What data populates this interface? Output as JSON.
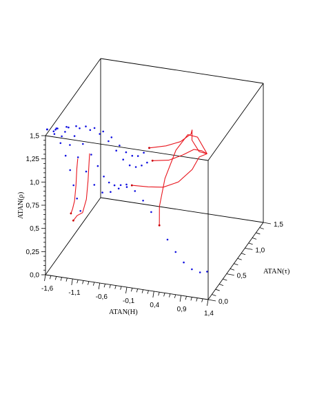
{
  "chart_data": {
    "type": "scatter",
    "subtype": "3d phase-space trajectories (dotted blue paths and solid red curves inside a wireframe box)",
    "title": "",
    "xlabel": "ATAN(H)",
    "ylabel": "ATAN(τ)",
    "zlabel": "ATAN(ρ)",
    "xlim": [
      -1.6,
      1.4
    ],
    "ylim": [
      0.0,
      1.5
    ],
    "zlim": [
      0.0,
      1.5
    ],
    "x_ticks": [
      "-1,6",
      "-1,1",
      "-0,6",
      "-0,1",
      "0,4",
      "0,9",
      "1,4"
    ],
    "y_ticks": [
      "0,0",
      "0,5",
      "1,0",
      "1,5"
    ],
    "z_ticks": [
      "0,0",
      "0,25",
      "0,5",
      "0,75",
      "1,0",
      "1,25",
      "1,5"
    ],
    "x_tick_values": [
      -1.6,
      -1.1,
      -0.6,
      -0.1,
      0.4,
      0.9,
      1.4
    ],
    "y_tick_values": [
      0.0,
      0.5,
      1.0,
      1.5
    ],
    "z_tick_values": [
      0.0,
      0.25,
      0.5,
      0.75,
      1.0,
      1.25,
      1.5
    ],
    "grid": false,
    "legend": "none",
    "colors": {
      "dots": "#1010e0",
      "curves": "#e8141c",
      "box": "#000000"
    },
    "series": [
      {
        "kind": "dotted",
        "points": [
          [
            -1.57,
            0.0,
            1.57
          ],
          [
            -1.45,
            0.0,
            1.56
          ],
          [
            -1.3,
            0.0,
            1.52
          ],
          [
            -1.15,
            0.0,
            1.44
          ],
          [
            -1.0,
            0.0,
            1.32
          ],
          [
            -0.85,
            0.0,
            1.18
          ],
          [
            -0.7,
            0.0,
            1.05
          ],
          [
            -0.55,
            0.0,
            0.98
          ],
          [
            -0.4,
            0.0,
            1.0
          ],
          [
            -0.25,
            0.0,
            1.05
          ],
          [
            -0.1,
            0.0,
            1.08
          ],
          [
            0.05,
            0.0,
            1.05
          ],
          [
            0.2,
            0.0,
            0.96
          ],
          [
            0.35,
            0.0,
            0.85
          ],
          [
            0.5,
            0.0,
            0.72
          ],
          [
            0.65,
            0.0,
            0.58
          ],
          [
            0.8,
            0.0,
            0.46
          ],
          [
            0.95,
            0.0,
            0.36
          ],
          [
            1.1,
            0.0,
            0.3
          ],
          [
            1.25,
            0.0,
            0.28
          ],
          [
            1.38,
            0.0,
            0.3
          ]
        ]
      },
      {
        "kind": "dotted",
        "points": [
          [
            -1.57,
            0.0,
            1.57
          ],
          [
            -1.45,
            0.05,
            1.55
          ],
          [
            -1.32,
            0.12,
            1.5
          ],
          [
            -1.2,
            0.2,
            1.42
          ],
          [
            -1.1,
            0.28,
            1.3
          ],
          [
            -1.0,
            0.36,
            1.15
          ],
          [
            -0.92,
            0.42,
            1.0
          ],
          [
            -0.85,
            0.48,
            0.86
          ],
          [
            -0.78,
            0.52,
            0.78
          ],
          [
            -0.7,
            0.55,
            0.74
          ],
          [
            -0.6,
            0.57,
            0.74
          ],
          [
            -0.5,
            0.58,
            0.75
          ],
          [
            -0.4,
            0.58,
            0.75
          ]
        ]
      },
      {
        "kind": "dotted",
        "points": [
          [
            -1.57,
            0.0,
            1.57
          ],
          [
            -1.42,
            0.06,
            1.56
          ],
          [
            -1.27,
            0.14,
            1.54
          ],
          [
            -1.12,
            0.22,
            1.5
          ],
          [
            -0.98,
            0.3,
            1.45
          ],
          [
            -0.85,
            0.37,
            1.38
          ],
          [
            -0.73,
            0.43,
            1.28
          ],
          [
            -0.62,
            0.48,
            1.16
          ],
          [
            -0.52,
            0.52,
            1.05
          ],
          [
            -0.42,
            0.55,
            0.98
          ],
          [
            -0.32,
            0.57,
            0.96
          ],
          [
            -0.22,
            0.58,
            0.98
          ],
          [
            -0.12,
            0.58,
            1.02
          ],
          [
            -0.02,
            0.58,
            1.05
          ]
        ]
      },
      {
        "kind": "dotted",
        "points": [
          [
            -1.57,
            0.0,
            1.57
          ],
          [
            -1.44,
            0.06,
            1.56
          ],
          [
            -1.3,
            0.13,
            1.55
          ],
          [
            -1.17,
            0.2,
            1.53
          ],
          [
            -1.04,
            0.27,
            1.5
          ],
          [
            -0.92,
            0.33,
            1.46
          ],
          [
            -0.8,
            0.39,
            1.4
          ],
          [
            -0.68,
            0.44,
            1.32
          ],
          [
            -0.56,
            0.48,
            1.22
          ],
          [
            -0.46,
            0.51,
            1.14
          ],
          [
            -0.36,
            0.53,
            1.1
          ],
          [
            -0.26,
            0.54,
            1.1
          ],
          [
            -0.16,
            0.55,
            1.14
          ],
          [
            -0.06,
            0.55,
            1.2
          ]
        ]
      },
      {
        "kind": "dotted",
        "points": [
          [
            -1.57,
            0.0,
            1.57
          ],
          [
            -1.45,
            0.02,
            1.52
          ],
          [
            -1.35,
            0.04,
            1.42
          ],
          [
            -1.27,
            0.06,
            1.28
          ],
          [
            -1.2,
            0.08,
            1.12
          ],
          [
            -1.15,
            0.1,
            0.95
          ],
          [
            -1.1,
            0.12,
            0.8
          ],
          [
            -1.05,
            0.14,
            0.66
          ]
        ]
      },
      {
        "kind": "line",
        "points": [
          [
            -1.3,
            0.25,
            0.55
          ],
          [
            -1.25,
            0.22,
            0.62
          ],
          [
            -1.2,
            0.2,
            0.72
          ],
          [
            -1.16,
            0.18,
            0.9
          ],
          [
            -1.13,
            0.16,
            1.1
          ],
          [
            -1.1,
            0.14,
            1.22
          ]
        ]
      },
      {
        "kind": "line",
        "points": [
          [
            -1.12,
            0.05,
            0.6
          ],
          [
            -1.05,
            0.05,
            0.66
          ],
          [
            -0.95,
            0.05,
            0.7
          ],
          [
            -0.88,
            0.05,
            0.85
          ],
          [
            -0.85,
            0.05,
            1.05
          ],
          [
            -0.83,
            0.05,
            1.25
          ],
          [
            -0.82,
            0.05,
            1.35
          ]
        ]
      },
      {
        "kind": "line",
        "points": [
          [
            -0.4,
            0.58,
            0.75
          ],
          [
            -0.1,
            0.58,
            0.76
          ],
          [
            0.2,
            0.55,
            0.8
          ],
          [
            0.5,
            0.52,
            0.9
          ],
          [
            0.8,
            0.45,
            1.1
          ],
          [
            1.1,
            0.2,
            1.4
          ],
          [
            1.38,
            0.0,
            1.57
          ]
        ]
      },
      {
        "kind": "line",
        "points": [
          [
            -0.02,
            0.58,
            1.05
          ],
          [
            0.3,
            0.55,
            1.1
          ],
          [
            0.6,
            0.48,
            1.22
          ],
          [
            0.9,
            0.35,
            1.38
          ],
          [
            1.2,
            0.12,
            1.52
          ],
          [
            1.38,
            0.0,
            1.57
          ]
        ]
      },
      {
        "kind": "line",
        "points": [
          [
            -0.06,
            0.55,
            1.2
          ],
          [
            0.25,
            0.55,
            1.25
          ],
          [
            0.55,
            0.5,
            1.35
          ],
          [
            0.8,
            0.42,
            1.5
          ],
          [
            0.9,
            0.3,
            1.62
          ],
          [
            1.0,
            0.15,
            1.6
          ],
          [
            1.2,
            0.05,
            1.55
          ],
          [
            1.38,
            0.0,
            1.57
          ]
        ]
      },
      {
        "kind": "line",
        "points": [
          [
            0.5,
            0.0,
            0.72
          ],
          [
            0.42,
            0.12,
            0.85
          ],
          [
            0.4,
            0.3,
            1.05
          ],
          [
            0.5,
            0.45,
            1.28
          ],
          [
            0.7,
            0.48,
            1.45
          ],
          [
            1.0,
            0.3,
            1.55
          ],
          [
            1.38,
            0.0,
            1.57
          ]
        ]
      }
    ]
  }
}
